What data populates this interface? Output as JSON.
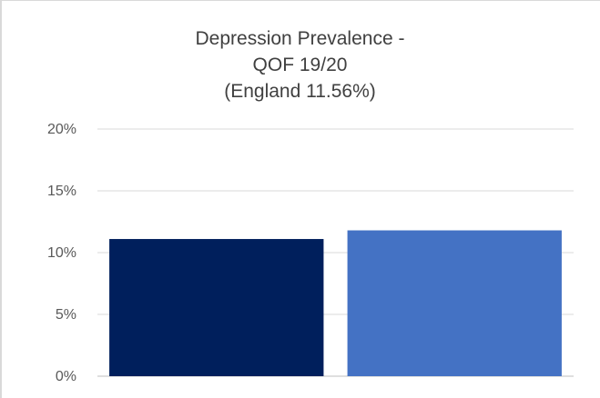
{
  "chart_data": {
    "type": "bar",
    "title_lines": [
      "Depression Prevalence -",
      "QOF 19/20",
      "(England 11.56%)"
    ],
    "categories": [
      "",
      ""
    ],
    "values": [
      11.1,
      11.8
    ],
    "colors": [
      "#001f5c",
      "#4472c4"
    ],
    "ylim": [
      0,
      20
    ],
    "yticks": [
      "0%",
      "5%",
      "10%",
      "15%",
      "20%"
    ],
    "ytick_values": [
      0,
      5,
      10,
      15,
      20
    ],
    "grid": true,
    "xlabel": "",
    "ylabel": ""
  }
}
